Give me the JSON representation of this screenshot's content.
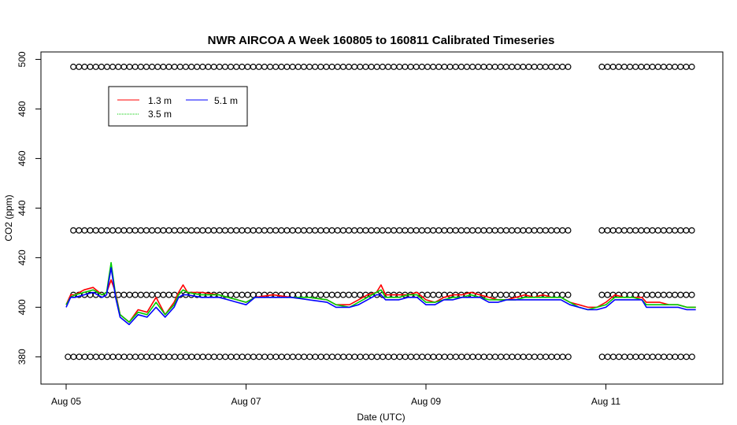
{
  "chart_data": {
    "type": "line",
    "title": "NWR AIRCOA A  Week 160805 to 160811  Calibrated Timeseries",
    "xlabel": "Date (UTC)",
    "ylabel": "CO2 (ppm)",
    "xlim_days": [
      -0.28,
      7.3
    ],
    "ylim": [
      369,
      503
    ],
    "x_ticks": [
      {
        "day": 0,
        "label": "Aug 05"
      },
      {
        "day": 2,
        "label": "Aug 07"
      },
      {
        "day": 4,
        "label": "Aug 09"
      },
      {
        "day": 6,
        "label": "Aug 11"
      }
    ],
    "y_ticks": [
      380,
      400,
      420,
      440,
      460,
      480,
      500
    ],
    "legend": {
      "position": "top-left",
      "entries": [
        {
          "name": "1.3 m",
          "color": "#ff0000"
        },
        {
          "name": "3.5 m",
          "color": "#00cd00"
        },
        {
          "name": "5.1 m",
          "color": "#0000ff"
        }
      ]
    },
    "series": [
      {
        "name": "1.3 m",
        "color": "#ff0000",
        "points": [
          [
            0,
            401
          ],
          [
            0.05,
            405
          ],
          [
            0.1,
            405
          ],
          [
            0.2,
            407
          ],
          [
            0.3,
            408
          ],
          [
            0.4,
            405
          ],
          [
            0.45,
            406
          ],
          [
            0.5,
            411
          ],
          [
            0.55,
            406
          ],
          [
            0.6,
            397
          ],
          [
            0.7,
            394
          ],
          [
            0.8,
            399
          ],
          [
            0.9,
            398
          ],
          [
            1.0,
            404
          ],
          [
            1.1,
            397
          ],
          [
            1.2,
            402
          ],
          [
            1.25,
            406
          ],
          [
            1.3,
            409
          ],
          [
            1.35,
            406
          ],
          [
            1.5,
            406
          ],
          [
            1.7,
            405
          ],
          [
            1.8,
            404
          ],
          [
            1.9,
            403
          ],
          [
            2.0,
            402
          ],
          [
            2.1,
            404
          ],
          [
            2.3,
            405
          ],
          [
            2.5,
            404
          ],
          [
            2.7,
            404
          ],
          [
            2.9,
            403
          ],
          [
            3.0,
            401
          ],
          [
            3.15,
            401
          ],
          [
            3.25,
            403
          ],
          [
            3.35,
            405
          ],
          [
            3.45,
            406
          ],
          [
            3.5,
            409
          ],
          [
            3.55,
            405
          ],
          [
            3.7,
            405
          ],
          [
            3.8,
            405
          ],
          [
            3.9,
            406
          ],
          [
            4.0,
            403
          ],
          [
            4.1,
            402
          ],
          [
            4.2,
            404
          ],
          [
            4.3,
            405
          ],
          [
            4.4,
            405
          ],
          [
            4.5,
            406
          ],
          [
            4.6,
            405
          ],
          [
            4.7,
            404
          ],
          [
            4.8,
            403
          ],
          [
            4.9,
            403
          ],
          [
            5.0,
            404
          ],
          [
            5.1,
            405
          ],
          [
            5.2,
            404
          ],
          [
            5.3,
            405
          ],
          [
            5.4,
            404
          ],
          [
            5.5,
            404
          ],
          [
            5.6,
            402
          ],
          [
            5.7,
            401
          ],
          [
            5.8,
            400
          ],
          [
            5.9,
            400
          ],
          [
            6.0,
            402
          ],
          [
            6.1,
            405
          ],
          [
            6.2,
            404
          ],
          [
            6.3,
            404
          ],
          [
            6.4,
            404
          ],
          [
            6.45,
            402
          ],
          [
            6.6,
            402
          ],
          [
            6.7,
            401
          ],
          [
            6.8,
            401
          ],
          [
            6.9,
            400
          ],
          [
            7.0,
            400
          ]
        ]
      },
      {
        "name": "3.5 m",
        "color": "#00cd00",
        "points": [
          [
            0,
            401
          ],
          [
            0.05,
            404
          ],
          [
            0.1,
            405
          ],
          [
            0.2,
            406
          ],
          [
            0.3,
            407
          ],
          [
            0.4,
            405
          ],
          [
            0.45,
            406
          ],
          [
            0.5,
            418
          ],
          [
            0.55,
            405
          ],
          [
            0.6,
            397
          ],
          [
            0.7,
            394
          ],
          [
            0.8,
            398
          ],
          [
            0.9,
            397
          ],
          [
            1.0,
            402
          ],
          [
            1.1,
            397
          ],
          [
            1.2,
            401
          ],
          [
            1.25,
            405
          ],
          [
            1.3,
            407
          ],
          [
            1.35,
            406
          ],
          [
            1.5,
            405
          ],
          [
            1.7,
            405
          ],
          [
            1.8,
            404
          ],
          [
            1.9,
            403
          ],
          [
            2.0,
            402
          ],
          [
            2.1,
            404
          ],
          [
            2.3,
            404
          ],
          [
            2.5,
            404
          ],
          [
            2.7,
            404
          ],
          [
            2.9,
            403
          ],
          [
            3.0,
            401
          ],
          [
            3.15,
            400
          ],
          [
            3.25,
            402
          ],
          [
            3.35,
            404
          ],
          [
            3.45,
            406
          ],
          [
            3.5,
            407
          ],
          [
            3.55,
            404
          ],
          [
            3.7,
            404
          ],
          [
            3.8,
            405
          ],
          [
            3.9,
            405
          ],
          [
            4.0,
            402
          ],
          [
            4.1,
            402
          ],
          [
            4.2,
            403
          ],
          [
            4.3,
            404
          ],
          [
            4.4,
            404
          ],
          [
            4.5,
            405
          ],
          [
            4.6,
            404
          ],
          [
            4.7,
            403
          ],
          [
            4.8,
            403
          ],
          [
            4.9,
            403
          ],
          [
            5.0,
            403
          ],
          [
            5.1,
            404
          ],
          [
            5.2,
            404
          ],
          [
            5.3,
            404
          ],
          [
            5.4,
            404
          ],
          [
            5.5,
            404
          ],
          [
            5.6,
            402
          ],
          [
            5.7,
            400
          ],
          [
            5.8,
            399
          ],
          [
            5.9,
            400
          ],
          [
            6.0,
            401
          ],
          [
            6.1,
            404
          ],
          [
            6.2,
            404
          ],
          [
            6.3,
            404
          ],
          [
            6.4,
            403
          ],
          [
            6.45,
            401
          ],
          [
            6.6,
            401
          ],
          [
            6.7,
            401
          ],
          [
            6.8,
            401
          ],
          [
            6.9,
            400
          ],
          [
            7.0,
            400
          ]
        ]
      },
      {
        "name": "5.1 m",
        "color": "#0000ff",
        "points": [
          [
            0,
            400
          ],
          [
            0.05,
            404
          ],
          [
            0.1,
            404
          ],
          [
            0.2,
            405
          ],
          [
            0.3,
            406
          ],
          [
            0.4,
            404
          ],
          [
            0.45,
            405
          ],
          [
            0.5,
            416
          ],
          [
            0.55,
            404
          ],
          [
            0.6,
            396
          ],
          [
            0.7,
            393
          ],
          [
            0.8,
            397
          ],
          [
            0.9,
            396
          ],
          [
            1.0,
            400
          ],
          [
            1.1,
            396
          ],
          [
            1.2,
            400
          ],
          [
            1.25,
            404
          ],
          [
            1.3,
            405
          ],
          [
            1.35,
            405
          ],
          [
            1.5,
            404
          ],
          [
            1.7,
            404
          ],
          [
            1.8,
            403
          ],
          [
            1.9,
            402
          ],
          [
            2.0,
            401
          ],
          [
            2.1,
            404
          ],
          [
            2.3,
            404
          ],
          [
            2.5,
            404
          ],
          [
            2.7,
            403
          ],
          [
            2.9,
            402
          ],
          [
            3.0,
            400
          ],
          [
            3.15,
            400
          ],
          [
            3.25,
            401
          ],
          [
            3.35,
            403
          ],
          [
            3.45,
            405
          ],
          [
            3.5,
            405
          ],
          [
            3.55,
            403
          ],
          [
            3.7,
            403
          ],
          [
            3.8,
            404
          ],
          [
            3.9,
            404
          ],
          [
            4.0,
            401
          ],
          [
            4.1,
            401
          ],
          [
            4.2,
            403
          ],
          [
            4.3,
            403
          ],
          [
            4.4,
            404
          ],
          [
            4.5,
            404
          ],
          [
            4.6,
            404
          ],
          [
            4.7,
            402
          ],
          [
            4.8,
            402
          ],
          [
            4.9,
            403
          ],
          [
            5.0,
            403
          ],
          [
            5.1,
            403
          ],
          [
            5.2,
            403
          ],
          [
            5.3,
            403
          ],
          [
            5.4,
            403
          ],
          [
            5.5,
            403
          ],
          [
            5.6,
            401
          ],
          [
            5.7,
            400
          ],
          [
            5.8,
            399
          ],
          [
            5.9,
            399
          ],
          [
            6.0,
            400
          ],
          [
            6.1,
            403
          ],
          [
            6.2,
            403
          ],
          [
            6.3,
            403
          ],
          [
            6.4,
            403
          ],
          [
            6.45,
            400
          ],
          [
            6.6,
            400
          ],
          [
            6.7,
            400
          ],
          [
            6.8,
            400
          ],
          [
            6.9,
            399
          ],
          [
            7.0,
            399
          ]
        ]
      }
    ],
    "reference_markers": {
      "symbol": "open-circle",
      "color": "#000000",
      "levels": [
        {
          "y": 497,
          "x_start": 0.08,
          "x_end": 7.0,
          "gaps": [
            [
              5.6,
              5.9
            ]
          ]
        },
        {
          "y": 431,
          "x_start": 0.08,
          "x_end": 7.0,
          "gaps": [
            [
              5.6,
              5.9
            ]
          ]
        },
        {
          "y": 405,
          "x_start": 0.08,
          "x_end": 7.0,
          "gaps": [
            [
              5.6,
              5.9
            ]
          ]
        },
        {
          "y": 380,
          "x_start": 0.02,
          "x_end": 7.0,
          "gaps": [
            [
              5.6,
              5.9
            ]
          ]
        }
      ]
    }
  }
}
